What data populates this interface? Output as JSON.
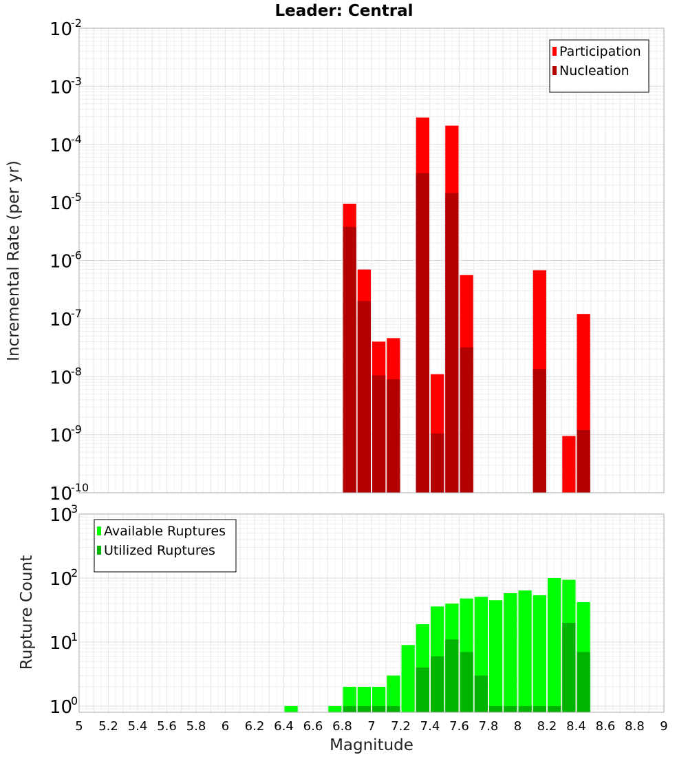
{
  "chart_data": [
    {
      "type": "bar",
      "title": "Leader: Central",
      "xlabel": "",
      "ylabel": "Incremental Rate (per yr)",
      "yscale": "log",
      "xlim": [
        5,
        9
      ],
      "ylim": [
        1e-10,
        0.01
      ],
      "y_tick_exponents": [
        -10,
        -9,
        -8,
        -7,
        -6,
        -5,
        -4,
        -3,
        -2
      ],
      "bar_width": 0.1,
      "legend_position": "top-right",
      "grid": true,
      "series": [
        {
          "name": "Participation",
          "color": "#ff0000",
          "x": [
            6.85,
            6.95,
            7.05,
            7.15,
            7.35,
            7.45,
            7.55,
            7.65,
            8.15,
            8.35,
            8.45
          ],
          "values": [
            9.5e-06,
            7e-07,
            4e-08,
            4.6e-08,
            0.00029,
            1.1e-08,
            0.00021,
            5.6e-07,
            6.8e-07,
            9.5e-10,
            1.2e-07
          ]
        },
        {
          "name": "Nucleation",
          "color": "#b30000",
          "x": [
            6.85,
            6.95,
            7.05,
            7.15,
            7.35,
            7.45,
            7.55,
            7.65,
            8.15,
            8.45
          ],
          "values": [
            3.8e-06,
            2e-07,
            1.05e-08,
            9e-09,
            3.2e-05,
            1.05e-09,
            1.45e-05,
            3.2e-08,
            1.35e-08,
            1.2e-09
          ]
        }
      ]
    },
    {
      "type": "bar",
      "title": "",
      "xlabel": "Magnitude",
      "ylabel": "Rupture Count",
      "yscale": "log",
      "xlim": [
        5,
        9
      ],
      "ylim": [
        0.8,
        1000
      ],
      "y_tick_exponents": [
        0,
        1,
        2,
        3
      ],
      "x_ticks": [
        "5",
        "5.2",
        "5.4",
        "5.6",
        "5.8",
        "6",
        "6.2",
        "6.4",
        "6.6",
        "6.8",
        "7",
        "7.2",
        "7.4",
        "7.6",
        "7.8",
        "8",
        "8.2",
        "8.4",
        "8.6",
        "8.8",
        "9"
      ],
      "bar_width": 0.1,
      "legend_position": "top-left",
      "grid": true,
      "series": [
        {
          "name": "Available Ruptures",
          "color": "#00ff00",
          "x": [
            6.45,
            6.75,
            6.85,
            6.95,
            7.05,
            7.15,
            7.25,
            7.35,
            7.45,
            7.55,
            7.65,
            7.75,
            7.85,
            7.95,
            8.05,
            8.15,
            8.25,
            8.35,
            8.45
          ],
          "values": [
            1,
            1,
            2,
            2,
            2,
            3,
            9,
            19,
            36,
            40,
            48,
            51,
            45,
            58,
            64,
            54,
            100,
            94,
            42
          ]
        },
        {
          "name": "Utilized Ruptures",
          "color": "#00b300",
          "x": [
            6.85,
            6.95,
            7.05,
            7.15,
            7.35,
            7.45,
            7.55,
            7.65,
            7.75,
            7.85,
            7.95,
            8.05,
            8.15,
            8.25,
            8.35,
            8.45
          ],
          "values": [
            1,
            1,
            1,
            1,
            4,
            6,
            11,
            7,
            3,
            1,
            1,
            1,
            1,
            1,
            20,
            7
          ]
        }
      ]
    }
  ]
}
